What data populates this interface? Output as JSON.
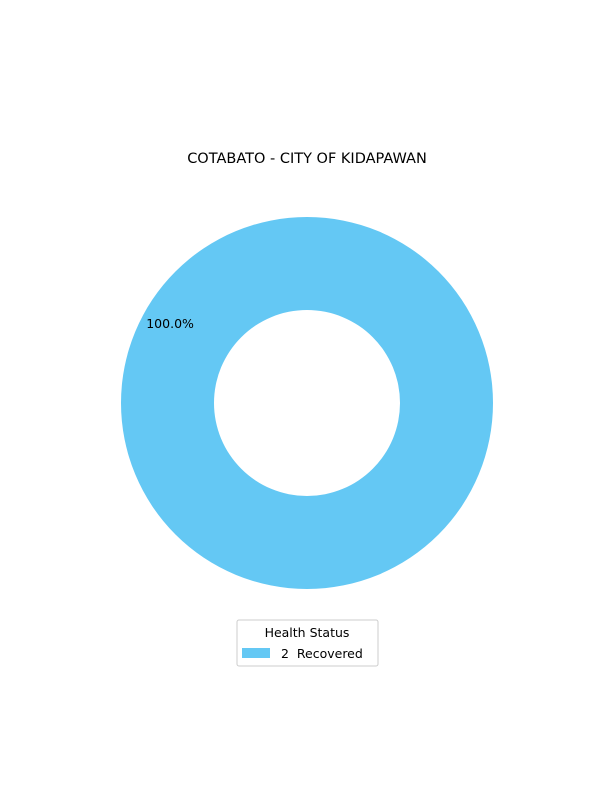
{
  "chart_data": {
    "type": "pie",
    "style": "donut",
    "title": "COTABATO - CITY OF KIDAPAWAN",
    "slices": [
      {
        "label": "Recovered",
        "count": 2,
        "legend_label": "2  Recovered",
        "percent_label": "100.0%",
        "share": 1.0,
        "color": "#64c8f4"
      }
    ],
    "legend": {
      "title": "Health Status",
      "placement": "bottom-center"
    }
  }
}
